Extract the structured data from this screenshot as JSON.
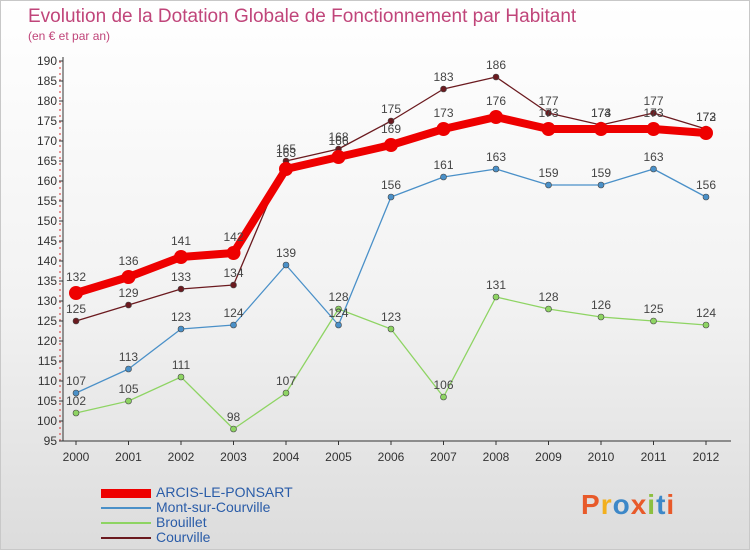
{
  "title": "Evolution de la Dotation Globale de Fonctionnement par Habitant",
  "subtitle": "(en € et par an)",
  "logo": {
    "text": "Proxiti",
    "colors": [
      "#e85a2a",
      "#f2b01e",
      "#3d88c8",
      "#e85a2a",
      "#8cbf3f",
      "#3d88c8",
      "#e85a2a"
    ]
  },
  "chart_data": {
    "type": "line",
    "x": [
      "2000",
      "2001",
      "2002",
      "2003",
      "2004",
      "2005",
      "2006",
      "2007",
      "2008",
      "2009",
      "2010",
      "2011",
      "2012"
    ],
    "ylim": [
      95,
      190
    ],
    "yticks": [
      95,
      100,
      105,
      110,
      115,
      120,
      125,
      130,
      135,
      140,
      145,
      150,
      155,
      160,
      165,
      170,
      175,
      180,
      185,
      190
    ],
    "grid": false,
    "legend": "bottom-left",
    "series": [
      {
        "name": "Courville",
        "color": "#6b1a1f",
        "values": [
          125,
          129,
          133,
          134,
          165,
          168,
          175,
          183,
          186,
          177,
          174,
          177,
          173
        ]
      },
      {
        "name": "Brouillet",
        "color": "#8ed463",
        "values": [
          102,
          105,
          111,
          98,
          107,
          128,
          123,
          106,
          131,
          128,
          126,
          125,
          124
        ]
      },
      {
        "name": "Mont-sur-Courville",
        "color": "#4a90c8",
        "values": [
          107,
          113,
          123,
          124,
          139,
          124,
          156,
          161,
          163,
          159,
          159,
          163,
          156
        ]
      },
      {
        "name": "ARCIS-LE-PONSART",
        "color": "#ee0000",
        "values": [
          132,
          136,
          141,
          142,
          163,
          166,
          169,
          173,
          176,
          173,
          173,
          173,
          172
        ]
      }
    ]
  },
  "legend_items": [
    {
      "name": "ARCIS-LE-PONSART",
      "color": "#ee0000",
      "text_color": "#2a5ca8",
      "thick": true
    },
    {
      "name": "Mont-sur-Courville",
      "color": "#4a90c8",
      "text_color": "#2a5ca8",
      "thick": false
    },
    {
      "name": "Brouillet",
      "color": "#8ed463",
      "text_color": "#2a5ca8",
      "thick": false
    },
    {
      "name": "Courville",
      "color": "#6b1a1f",
      "text_color": "#2a5ca8",
      "thick": false
    }
  ]
}
